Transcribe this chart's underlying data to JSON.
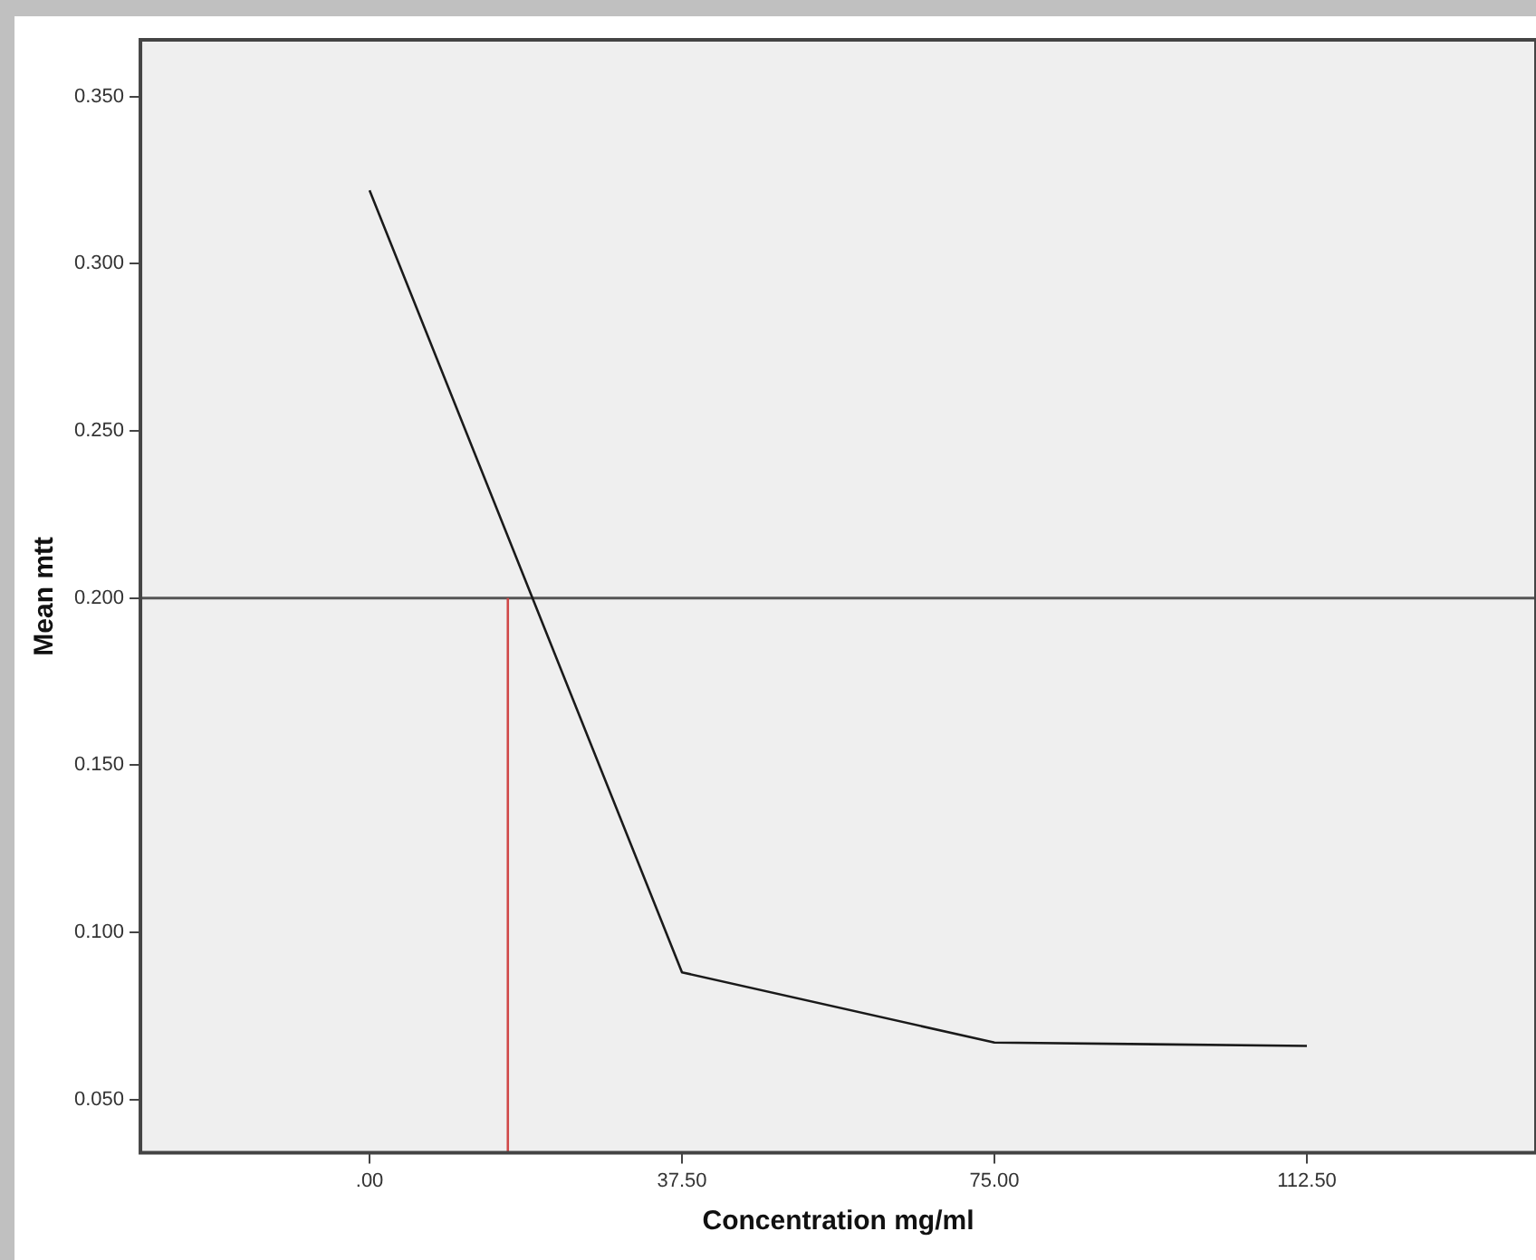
{
  "chart_data": {
    "type": "line",
    "xlabel": "Concentration mg/ml",
    "ylabel": "Mean mtt",
    "x": [
      0,
      37.5,
      75,
      112.5
    ],
    "series": [
      {
        "color": "#1a1a1a",
        "values": [
          0.322,
          0.088,
          0.067,
          0.066
        ]
      },
      {
        "type": "line",
        "color": "#d04848",
        "x": [
          16.6,
          16.6
        ],
        "values": [
          0.034,
          0.2
        ]
      }
    ],
    "xlim": [
      -27.5,
      140
    ],
    "xticks": [
      {
        "value": 0,
        "label": ".00"
      },
      {
        "value": 37.5,
        "label": "37.50"
      },
      {
        "value": 75,
        "label": "75.00"
      },
      {
        "value": 112.5,
        "label": "112.50"
      }
    ],
    "ylim": [
      0.034,
      0.367
    ],
    "yticks": [
      {
        "value": 0.05,
        "label": "0.050"
      },
      {
        "value": 0.1,
        "label": "0.100"
      },
      {
        "value": 0.15,
        "label": "0.150"
      },
      {
        "value": 0.2,
        "label": "0.200"
      },
      {
        "value": 0.25,
        "label": "0.250"
      },
      {
        "value": 0.3,
        "label": "0.300"
      },
      {
        "value": 0.35,
        "label": "0.350"
      }
    ],
    "ref_lines": [
      {
        "axis": "y",
        "value": 0.2,
        "color": "#555555"
      }
    ],
    "grid": false,
    "legend": false,
    "marker": "none",
    "line_style": "solid"
  }
}
